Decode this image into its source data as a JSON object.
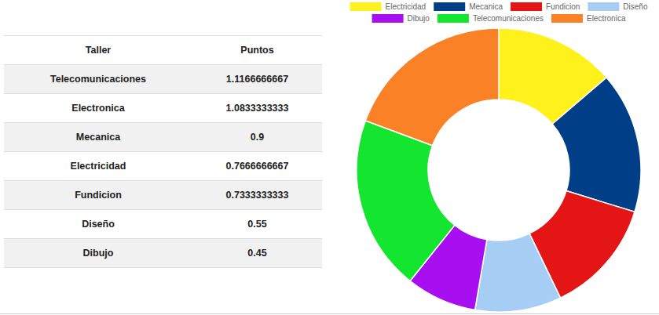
{
  "table": {
    "header": [
      "Taller",
      "Puntos"
    ],
    "rows": [
      [
        "Telecomunicaciones",
        1.1166666667
      ],
      [
        "Electronica",
        1.0833333333
      ],
      [
        "Mecanica",
        0.9
      ],
      [
        "Electricidad",
        0.7666666667
      ],
      [
        "Fundicion",
        0.7333333333
      ],
      [
        "Diseño",
        0.55
      ],
      [
        "Dibujo",
        0.45
      ]
    ]
  },
  "chart_data": {
    "type": "doughnut",
    "categories": [
      "Electricidad",
      "Mecanica",
      "Fundicion",
      "Diseño",
      "Dibujo",
      "Telecomunicaciones",
      "Electronica"
    ],
    "values": [
      0.7666666667,
      0.9,
      0.7333333333,
      0.55,
      0.45,
      1.1166666667,
      1.0833333333
    ],
    "colors": [
      "#fff21c",
      "#003f87",
      "#e31515",
      "#a6cef5",
      "#a80ff0",
      "#14e630",
      "#fb8127"
    ],
    "legend": "top"
  }
}
